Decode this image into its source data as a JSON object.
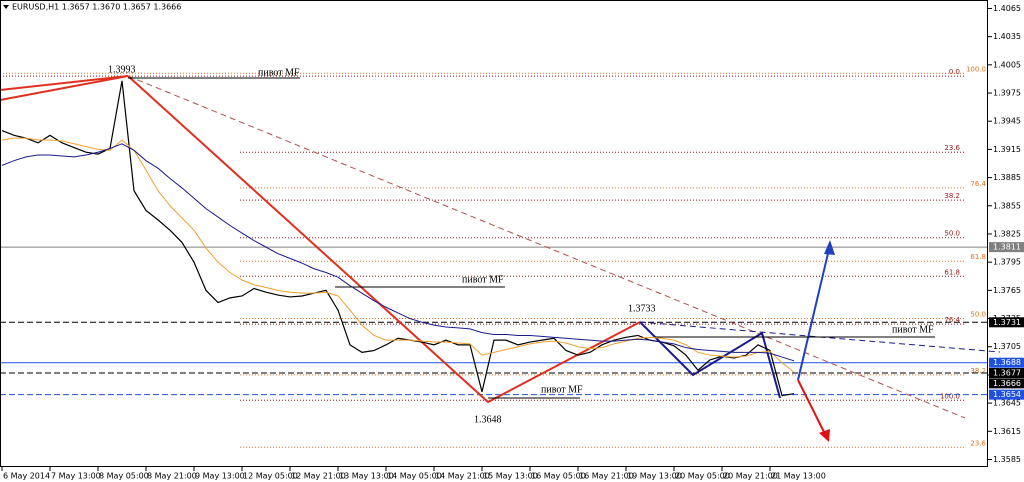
{
  "chart_data": {
    "type": "line",
    "title": "EURUSD,H1  1.3657 1.3670 1.3657 1.3666",
    "categories": [
      "6 May 2014",
      null,
      null,
      null,
      "7 May 13:00",
      null,
      null,
      null,
      "8 May 05:00",
      null,
      null,
      null,
      "8 May 21:00",
      null,
      null,
      null,
      "9 May 13:00",
      null,
      null,
      null,
      "12 May 05:00",
      null,
      null,
      null,
      "12 May 21:00",
      null,
      null,
      null,
      "13 May 13:00",
      null,
      null,
      null,
      "14 May 05:00",
      null,
      null,
      null,
      "14 May 21:00",
      null,
      null,
      null,
      "15 May 13:00",
      null,
      null,
      null,
      "16 May 05:00",
      null,
      null,
      null,
      "16 May 21:00",
      null,
      null,
      null,
      "19 May 13:00",
      null,
      null,
      null,
      "20 May 05:00",
      null,
      null,
      null,
      "20 May 21:00",
      null,
      null,
      null,
      "21 May 13:00",
      null,
      null
    ],
    "series": [
      {
        "color": "#000000",
        "values": [
          1.3935,
          1.393,
          1.3927,
          1.3922,
          1.393,
          1.3922,
          1.3917,
          1.3912,
          1.391,
          1.3916,
          1.3988,
          1.3871,
          1.385,
          1.384,
          1.3829,
          1.3816,
          1.3795,
          1.3765,
          1.3752,
          1.3757,
          1.3759,
          1.3767,
          1.3763,
          1.376,
          1.3758,
          1.3759,
          1.3762,
          1.3765,
          1.3744,
          1.3707,
          1.3699,
          1.3701,
          1.3707,
          1.3714,
          1.3712,
          1.371,
          1.3707,
          1.3712,
          1.3707,
          1.3707,
          1.3657,
          1.3712,
          1.3712,
          1.3707,
          1.371,
          1.3712,
          1.3714,
          1.3701,
          1.3696,
          1.3699,
          1.3707,
          1.3712,
          1.3715,
          1.3717,
          1.3712,
          1.371,
          1.3706,
          1.3696,
          1.368,
          1.3691,
          1.3695,
          1.3693,
          1.3696,
          1.3707,
          1.3701,
          1.3653,
          1.3655
        ]
      },
      {
        "color": "#f0a030",
        "values": [
          1.3925,
          1.3927,
          1.3927,
          1.3925,
          1.3925,
          1.3924,
          1.3921,
          1.3918,
          1.3915,
          1.3914,
          1.3925,
          1.3914,
          1.3893,
          1.3871,
          1.3855,
          1.3842,
          1.3829,
          1.381,
          1.3795,
          1.3784,
          1.3776,
          1.3771,
          1.3768,
          1.3765,
          1.3763,
          1.3762,
          1.3762,
          1.3763,
          1.3759,
          1.3744,
          1.3728,
          1.3717,
          1.3712,
          1.3712,
          1.3712,
          1.3711,
          1.371,
          1.371,
          1.3709,
          1.3708,
          1.3696,
          1.3699,
          1.3702,
          1.3705,
          1.3708,
          1.371,
          1.3711,
          1.3709,
          1.3705,
          1.3703,
          1.3704,
          1.3708,
          1.3711,
          1.3714,
          1.3715,
          1.3714,
          1.3712,
          1.3707,
          1.3699,
          1.3696,
          1.3695,
          1.3694,
          1.3695,
          1.3699,
          1.37,
          1.3688,
          1.3678
        ]
      },
      {
        "color": "#1a1a8c",
        "values": [
          1.3898,
          1.3903,
          1.3907,
          1.3909,
          1.3909,
          1.3908,
          1.3907,
          1.3909,
          1.3912,
          1.3916,
          1.3921,
          1.3914,
          1.3903,
          1.3895,
          1.3884,
          1.3874,
          1.3863,
          1.3852,
          1.3843,
          1.3834,
          1.3826,
          1.3818,
          1.3811,
          1.3804,
          1.3799,
          1.3794,
          1.3788,
          1.3784,
          1.3779,
          1.377,
          1.3762,
          1.3754,
          1.3747,
          1.3741,
          1.3735,
          1.3731,
          1.3728,
          1.3726,
          1.3725,
          1.3724,
          1.372,
          1.3718,
          1.3718,
          1.3717,
          1.3717,
          1.3716,
          1.3715,
          1.3714,
          1.3713,
          1.3712,
          1.3711,
          1.3711,
          1.3712,
          1.3713,
          1.3712,
          1.371,
          1.3708,
          1.3704,
          1.3702,
          1.3701,
          1.37,
          1.3699,
          1.3699,
          1.3699,
          1.3698,
          1.3694,
          1.369
        ]
      }
    ],
    "ylim": [
      1.3577,
      1.4074
    ],
    "yticks": [
      1.4065,
      1.4035,
      1.4005,
      1.3975,
      1.3945,
      1.3915,
      1.3885,
      1.3855,
      1.3825,
      1.3795,
      1.3765,
      1.3735,
      1.3705,
      1.3675,
      1.3645,
      1.3615,
      1.3585
    ],
    "price_lines": [
      {
        "value": 1.3811,
        "color": "#808080",
        "dash": false,
        "line": true
      },
      {
        "value": 1.3731,
        "color": "#000000",
        "dash": true,
        "line": true
      },
      {
        "value": 1.3688,
        "color": "#2050e0",
        "dash": false,
        "line": true
      },
      {
        "value": 1.3677,
        "color": "#000000",
        "dash": true,
        "line": true
      },
      {
        "value": 1.3666,
        "color": "#000000",
        "dash": false,
        "line": false
      },
      {
        "value": 1.3654,
        "color": "#2050e0",
        "dash": true,
        "line": true
      }
    ],
    "fibs": [
      {
        "color": "#8b1a1a",
        "levels": [
          {
            "label": "0.0",
            "price": 1.3993
          },
          {
            "label": "23.6",
            "price": 1.3912
          },
          {
            "label": "38.2",
            "price": 1.3861
          },
          {
            "label": "50.0",
            "price": 1.3821
          },
          {
            "label": "61.8",
            "price": 1.378
          },
          {
            "label": "76.4",
            "price": 1.3729
          },
          {
            "label": "100.0",
            "price": 1.3648
          }
        ]
      },
      {
        "color": "#e07020",
        "levels": [
          {
            "label": "100.0",
            "price": 1.3996
          },
          {
            "label": "76.4",
            "price": 1.3874
          },
          {
            "label": "61.8",
            "price": 1.3796
          },
          {
            "label": "50.0",
            "price": 1.3735
          },
          {
            "label": "38.2",
            "price": 1.3675
          },
          {
            "label": "23.6",
            "price": 1.3598
          }
        ]
      }
    ],
    "annotations": {
      "high": "1.3993",
      "low": "1.3648",
      "mid": "1.3733",
      "pivot": [
        "пивот MF",
        "пивот MF",
        "пивот MF",
        "пивот MF"
      ]
    }
  }
}
